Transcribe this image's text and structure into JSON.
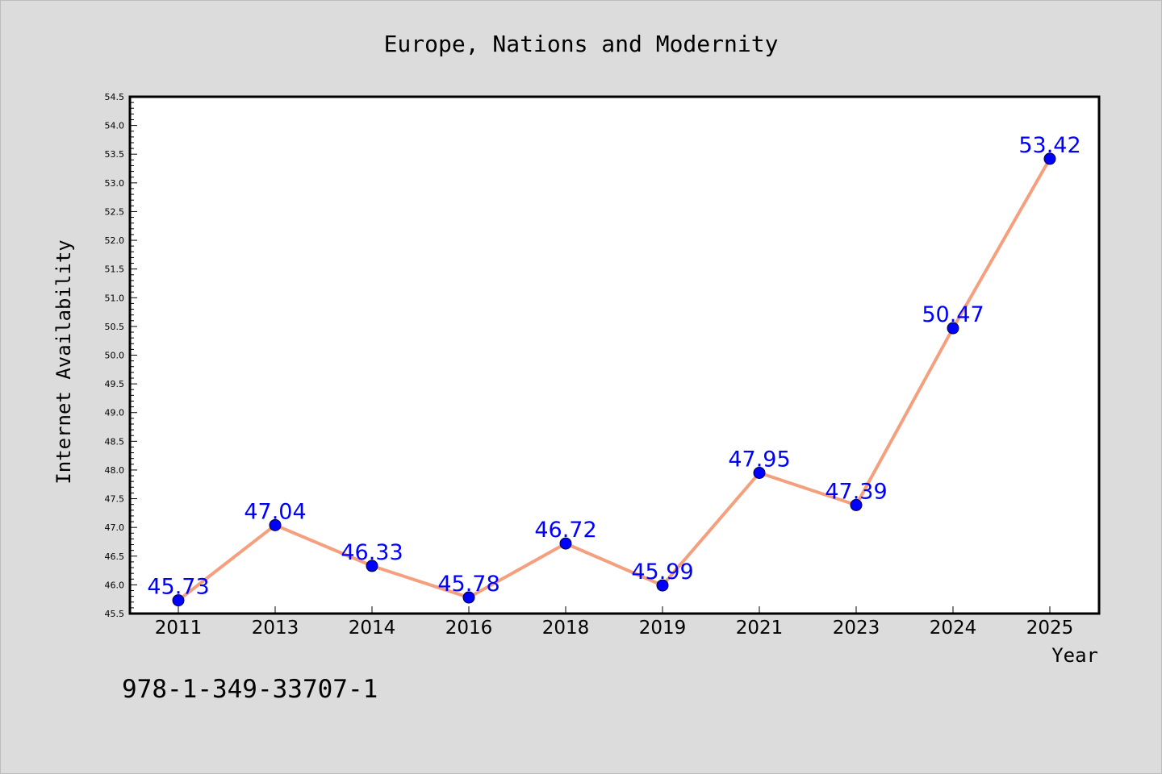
{
  "chart_data": {
    "type": "line",
    "title": "Europe, Nations and Modernity",
    "xlabel": "Year",
    "ylabel": "Internet Availability",
    "categories": [
      "2011",
      "2013",
      "2014",
      "2016",
      "2018",
      "2019",
      "2021",
      "2023",
      "2024",
      "2025"
    ],
    "series": [
      {
        "values": [
          45.73,
          47.04,
          46.33,
          45.78,
          46.72,
          45.99,
          47.95,
          47.39,
          50.47,
          53.42
        ],
        "labels": [
          "45.73",
          "47.04",
          "46.33",
          "45.78",
          "46.72",
          "45.99",
          "47.95",
          "47.39",
          "50.47",
          "53.42"
        ]
      }
    ],
    "ylim": [
      45.5,
      54.5
    ],
    "yticks": [
      "45.5",
      "46.0",
      "46.5",
      "47.0",
      "47.5",
      "48.0",
      "48.5",
      "49.0",
      "49.5",
      "50.0",
      "50.5",
      "51.0",
      "51.5",
      "52.0",
      "52.5",
      "53.0",
      "53.5",
      "54.0",
      "54.5"
    ],
    "grid": false,
    "legend": "none"
  },
  "annotation": "978-1-349-33707-1",
  "colors": {
    "line": "#f4a07f",
    "marker": "#0000ff",
    "label": "#0000ff",
    "plot_bg": "#ffffff",
    "figure_bg": "#dcdcdc"
  }
}
